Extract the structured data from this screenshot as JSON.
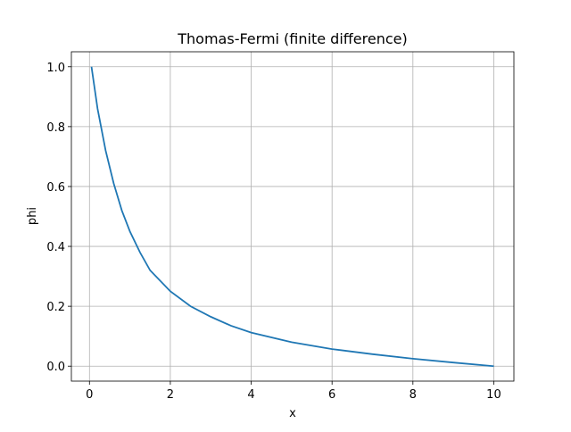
{
  "chart_data": {
    "type": "line",
    "title": "Thomas-Fermi (finite difference)",
    "x_label": "x",
    "y_label": "phi",
    "x": [
      0.05,
      0.2,
      0.4,
      0.6,
      0.8,
      1.0,
      1.25,
      1.5,
      2,
      2.5,
      3,
      3.5,
      4,
      5,
      6,
      7,
      8,
      9,
      10
    ],
    "series": [
      {
        "name": "phi",
        "color": "#1f77b4",
        "values": [
          1.0,
          0.86,
          0.72,
          0.61,
          0.52,
          0.45,
          0.38,
          0.32,
          0.25,
          0.2,
          0.165,
          0.135,
          0.112,
          0.08,
          0.057,
          0.04,
          0.025,
          0.012,
          0
        ]
      }
    ],
    "xlim": [
      -0.4475,
      10.4975
    ],
    "xticks": [
      0,
      2,
      4,
      6,
      8,
      10
    ],
    "ylim": [
      -0.05,
      1.05
    ],
    "yticks": [
      {
        "value": 0,
        "label": "0.0"
      },
      0.2,
      0.4,
      0.6,
      0.8,
      {
        "value": 1,
        "label": "1.0"
      }
    ],
    "grid": true
  }
}
